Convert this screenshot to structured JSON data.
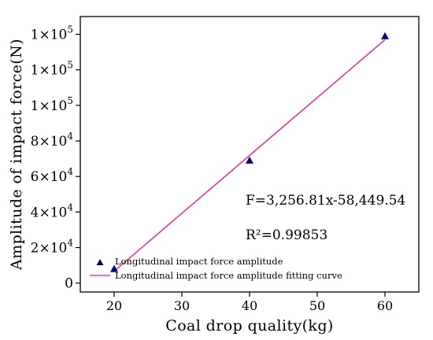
{
  "chart_data": {
    "type": "scatter",
    "title": "",
    "xlabel": "Coal drop quality(kg)",
    "ylabel": "Amplitude of impact force(N)",
    "xlim": [
      15,
      65
    ],
    "ylim": [
      -5000,
      150000
    ],
    "x_ticks": [
      20,
      30,
      40,
      50,
      60
    ],
    "x_tick_labels": [
      "20",
      "30",
      "40",
      "50",
      "60"
    ],
    "y_ticks": [
      0,
      20000,
      40000,
      60000,
      80000,
      100000,
      120000,
      140000
    ],
    "y_tick_labels": [
      {
        "coef": "0",
        "exp": ""
      },
      {
        "coef": "2×10",
        "exp": "4"
      },
      {
        "coef": "4×10",
        "exp": "4"
      },
      {
        "coef": "6×10",
        "exp": "4"
      },
      {
        "coef": "8×10",
        "exp": "4"
      },
      {
        "coef": "1×10",
        "exp": "5"
      },
      {
        "coef": "1×10",
        "exp": "5"
      },
      {
        "coef": "1×10",
        "exp": "5"
      }
    ],
    "grid": false,
    "series": [
      {
        "name": "Longitudinal impact force amplitude",
        "kind": "scatter",
        "marker": "triangle",
        "color": "#000080",
        "x": [
          20,
          40,
          60
        ],
        "y": [
          8000,
          69000,
          139000
        ]
      },
      {
        "name": "Longitudinal impact force amplitude fitting curve",
        "kind": "line",
        "color": "#ff1493",
        "x": [
          20,
          60
        ],
        "y": [
          6686.66,
          136958.86
        ]
      }
    ],
    "legend_position": "bottom-left",
    "annotations": {
      "equation": "F=3,256.81x-58,449.54",
      "r_squared": "R²=0.99853"
    }
  }
}
